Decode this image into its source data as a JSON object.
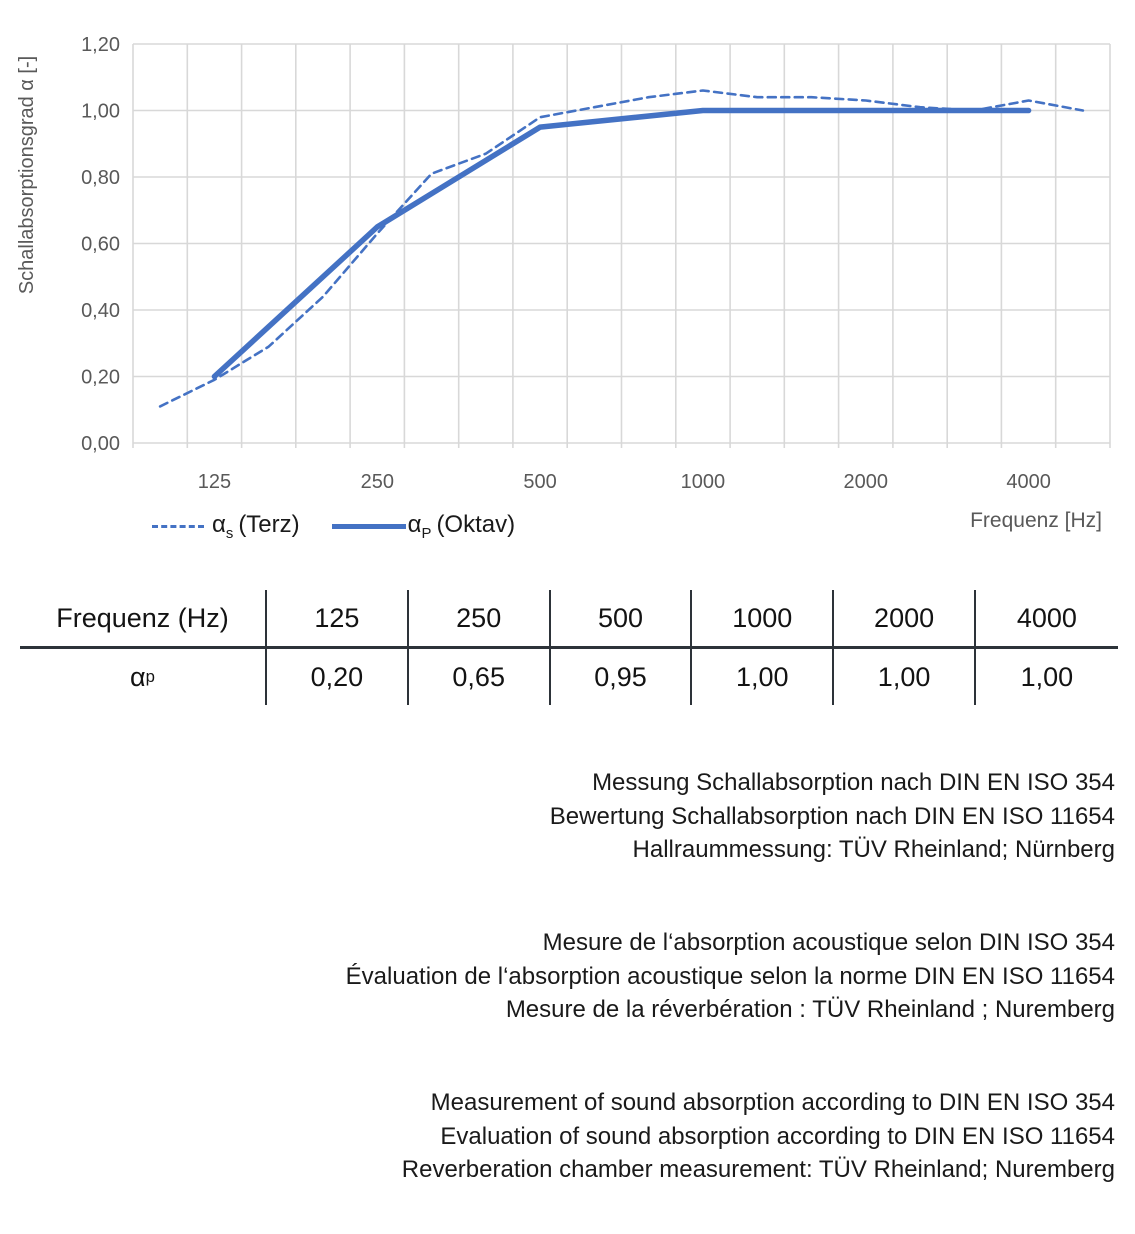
{
  "chart": {
    "y_axis_title": "Schallabsorptionsgrad α [-]",
    "x_axis_title": "Frequenz [Hz]",
    "y_ticks": [
      {
        "value": 0.0,
        "label": "0,00"
      },
      {
        "value": 0.2,
        "label": "0,20"
      },
      {
        "value": 0.4,
        "label": "0,40"
      },
      {
        "value": 0.6,
        "label": "0,60"
      },
      {
        "value": 0.8,
        "label": "0,80"
      },
      {
        "value": 1.0,
        "label": "1,00"
      },
      {
        "value": 1.2,
        "label": "1,20"
      }
    ],
    "x_tick_labels": [
      "125",
      "250",
      "500",
      "1000",
      "2000",
      "4000"
    ],
    "legend": [
      {
        "alpha": "α",
        "sub": "s",
        "rest": "(Terz)",
        "style": "dashed"
      },
      {
        "alpha": "α",
        "sub": "P",
        "rest": "(Oktav)",
        "style": "solid"
      }
    ],
    "colors": {
      "line_blue": "#4472C4",
      "grid": "#D8D8D8",
      "axis_text": "#595959"
    }
  },
  "chart_data": {
    "type": "line",
    "x_categories": [
      100,
      125,
      160,
      200,
      250,
      315,
      400,
      500,
      630,
      800,
      1000,
      1250,
      1600,
      2000,
      2500,
      3150,
      4000,
      5000
    ],
    "series": [
      {
        "name": "αs (Terz)",
        "style": "dashed",
        "x": [
          100,
          125,
          160,
          200,
          250,
          315,
          400,
          500,
          630,
          800,
          1000,
          1250,
          1600,
          2000,
          2500,
          3150,
          4000,
          5000
        ],
        "values": [
          0.11,
          0.19,
          0.29,
          0.44,
          0.63,
          0.81,
          0.87,
          0.98,
          1.01,
          1.04,
          1.06,
          1.04,
          1.04,
          1.03,
          1.01,
          1.0,
          1.03,
          1.0
        ]
      },
      {
        "name": "αP (Oktav)",
        "style": "solid",
        "x": [
          125,
          250,
          500,
          1000,
          2000,
          4000
        ],
        "values": [
          0.2,
          0.65,
          0.95,
          1.0,
          1.0,
          1.0
        ]
      }
    ],
    "title": "",
    "xlabel": "Frequenz [Hz]",
    "ylabel": "Schallabsorptionsgrad α [-]",
    "ylim": [
      0,
      1.2
    ],
    "grid": true,
    "legend_position": "bottom-left"
  },
  "table": {
    "header_label": "Frequenz (Hz)",
    "header_values": [
      "125",
      "250",
      "500",
      "1000",
      "2000",
      "4000"
    ],
    "row_label": {
      "alpha": "α",
      "sub": "p"
    },
    "row_values": [
      "0,20",
      "0,65",
      "0,95",
      "1,00",
      "1,00",
      "1,00"
    ]
  },
  "captions": {
    "de": [
      "Messung Schallabsorption nach DIN EN ISO 354",
      "Bewertung Schallabsorption nach DIN EN ISO 11654",
      "Hallraummessung: TÜV Rheinland; Nürnberg"
    ],
    "fr": [
      "Mesure de l‘absorption acoustique selon DIN ISO 354",
      "Évaluation de l‘absorption acoustique selon la norme DIN EN ISO 11654",
      "Mesure de la réverbération : TÜV Rheinland ; Nuremberg"
    ],
    "en": [
      "Measurement of sound absorption according to DIN EN ISO 354",
      "Evaluation of sound absorption according to DIN EN ISO 11654",
      "Reverberation chamber measurement: TÜV Rheinland; Nuremberg"
    ]
  }
}
